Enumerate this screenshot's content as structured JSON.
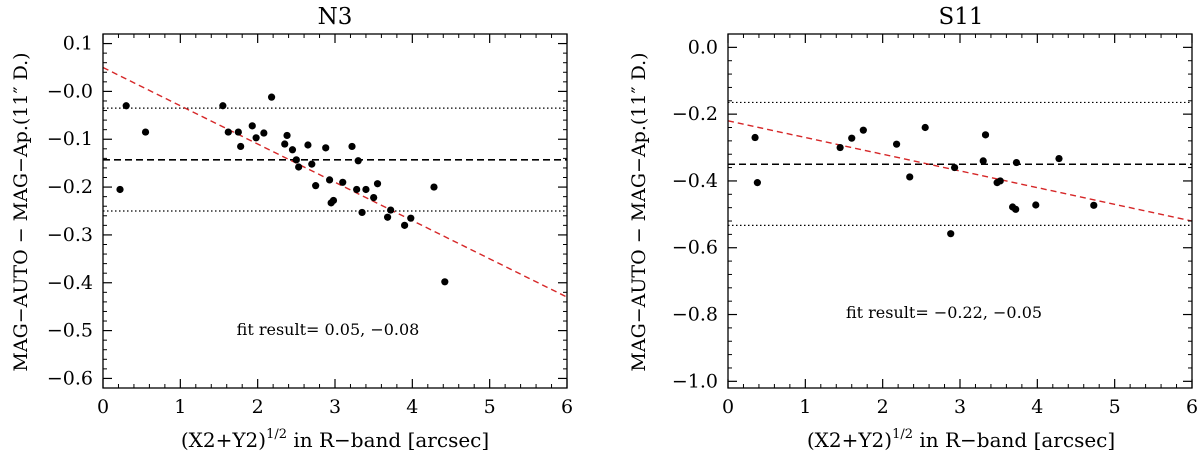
{
  "chart_data": [
    {
      "type": "scatter",
      "title": "N3",
      "xlabel": "(X2+Y2)",
      "xlabel_superscript": "1/2",
      "xlabel_suffix": " in R−band [arcsec]",
      "ylabel": "MAG−AUTO − MAG−Ap.(11″ D.)",
      "xlim": [
        0,
        6
      ],
      "ylim": [
        -0.62,
        0.12
      ],
      "xticks": [
        0,
        1,
        2,
        3,
        4,
        5,
        6
      ],
      "xtick_labels": [
        "0",
        "1",
        "2",
        "3",
        "4",
        "5",
        "6"
      ],
      "yticks": [
        0.1,
        -0.0,
        -0.1,
        -0.2,
        -0.3,
        -0.4,
        -0.5,
        -0.6
      ],
      "ytick_labels": [
        "0.1",
        "−0.0",
        "−0.1",
        "−0.2",
        "−0.3",
        "−0.4",
        "−0.5",
        "−0.6"
      ],
      "points": [
        [
          0.22,
          -0.205
        ],
        [
          0.3,
          -0.03
        ],
        [
          0.55,
          -0.085
        ],
        [
          1.55,
          -0.03
        ],
        [
          1.62,
          -0.085
        ],
        [
          1.75,
          -0.085
        ],
        [
          1.78,
          -0.115
        ],
        [
          1.93,
          -0.072
        ],
        [
          1.98,
          -0.097
        ],
        [
          2.08,
          -0.087
        ],
        [
          2.18,
          -0.012
        ],
        [
          2.35,
          -0.11
        ],
        [
          2.38,
          -0.092
        ],
        [
          2.45,
          -0.122
        ],
        [
          2.5,
          -0.143
        ],
        [
          2.53,
          -0.158
        ],
        [
          2.65,
          -0.112
        ],
        [
          2.7,
          -0.152
        ],
        [
          2.75,
          -0.197
        ],
        [
          2.88,
          -0.118
        ],
        [
          2.93,
          -0.185
        ],
        [
          2.95,
          -0.233
        ],
        [
          2.98,
          -0.228
        ],
        [
          3.1,
          -0.19
        ],
        [
          3.22,
          -0.115
        ],
        [
          3.28,
          -0.205
        ],
        [
          3.3,
          -0.145
        ],
        [
          3.35,
          -0.253
        ],
        [
          3.4,
          -0.205
        ],
        [
          3.5,
          -0.222
        ],
        [
          3.55,
          -0.193
        ],
        [
          3.68,
          -0.263
        ],
        [
          3.72,
          -0.248
        ],
        [
          3.9,
          -0.28
        ],
        [
          3.98,
          -0.265
        ],
        [
          4.28,
          -0.2
        ],
        [
          4.42,
          -0.398
        ]
      ],
      "fit_line": {
        "intercept": 0.05,
        "slope": -0.08
      },
      "mean_line": -0.143,
      "band_lines": [
        -0.035,
        -0.25
      ],
      "annotation": "fit result= 0.05, −0.08",
      "colors": {
        "fit": "#d62728",
        "points": "#000000"
      }
    },
    {
      "type": "scatter",
      "title": "S11",
      "xlabel": "(X2+Y2)",
      "xlabel_superscript": "1/2",
      "xlabel_suffix": " in R−band [arcsec]",
      "ylabel": "MAG−AUTO − MAG−Ap.(11″ D.)",
      "xlim": [
        0,
        6
      ],
      "ylim": [
        -1.02,
        0.04
      ],
      "xticks": [
        0,
        1,
        2,
        3,
        4,
        5,
        6
      ],
      "xtick_labels": [
        "0",
        "1",
        "2",
        "3",
        "4",
        "5",
        "6"
      ],
      "yticks": [
        0.0,
        -0.2,
        -0.4,
        -0.6,
        -0.8,
        -1.0
      ],
      "ytick_labels": [
        "0.0",
        "−0.2",
        "−0.4",
        "−0.6",
        "−0.8",
        "−1.0"
      ],
      "points": [
        [
          0.35,
          -0.27
        ],
        [
          0.38,
          -0.405
        ],
        [
          1.45,
          -0.3
        ],
        [
          1.6,
          -0.272
        ],
        [
          1.75,
          -0.248
        ],
        [
          2.18,
          -0.29
        ],
        [
          2.35,
          -0.388
        ],
        [
          2.55,
          -0.24
        ],
        [
          2.88,
          -0.558
        ],
        [
          2.93,
          -0.36
        ],
        [
          3.3,
          -0.34
        ],
        [
          3.33,
          -0.262
        ],
        [
          3.48,
          -0.405
        ],
        [
          3.52,
          -0.4
        ],
        [
          3.68,
          -0.478
        ],
        [
          3.72,
          -0.485
        ],
        [
          3.73,
          -0.345
        ],
        [
          3.98,
          -0.472
        ],
        [
          4.28,
          -0.333
        ],
        [
          4.73,
          -0.473
        ]
      ],
      "fit_line": {
        "intercept": -0.22,
        "slope": -0.05
      },
      "mean_line": -0.35,
      "band_lines": [
        -0.165,
        -0.533
      ],
      "annotation": "fit result= −0.22, −0.05",
      "colors": {
        "fit": "#d62728",
        "points": "#000000"
      }
    }
  ]
}
